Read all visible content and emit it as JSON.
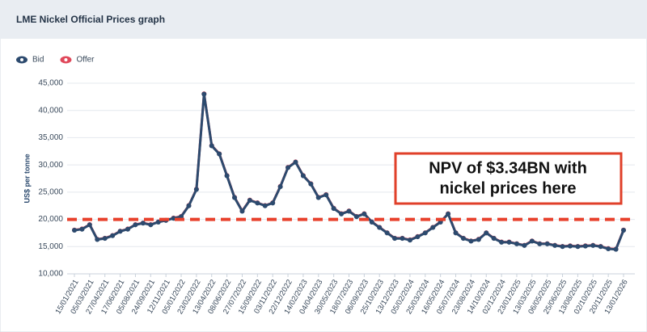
{
  "chart_data": {
    "type": "line",
    "title": "LME Nickel Official Prices graph",
    "y_label": "US$ per tonne",
    "categories": [
      "15/01/2021",
      null,
      "05/03/2021",
      null,
      "27/04/2021",
      null,
      "17/06/2021",
      null,
      "05/08/2021",
      null,
      "24/09/2021",
      null,
      "12/11/2021",
      null,
      "05/01/2022",
      null,
      "23/02/2022",
      null,
      "13/04/2022",
      null,
      "08/06/2022",
      null,
      "27/07/2022",
      null,
      "15/09/2022",
      null,
      "03/11/2022",
      null,
      "22/12/2022",
      null,
      "14/02/2023",
      null,
      "04/04/2023",
      null,
      "30/05/2023",
      null,
      "18/07/2023",
      null,
      "06/09/2023",
      null,
      "25/10/2023",
      null,
      "13/12/2023",
      null,
      "05/02/2024",
      null,
      "25/03/2024",
      null,
      "16/05/2024",
      null,
      "05/07/2024",
      null,
      "23/08/2024",
      null,
      "14/10/2024",
      null,
      "02/12/2024",
      null,
      "23/01/2025",
      null,
      "13/03/2025",
      null,
      "06/05/2025",
      null,
      "25/06/2025",
      null,
      "13/08/2025",
      null,
      "02/10/2025",
      null,
      "20/11/2025",
      null,
      "13/01/2026"
    ],
    "series": [
      {
        "name": "Bid",
        "color": "#2c4a6e",
        "values": [
          18000,
          18200,
          19000,
          16300,
          16500,
          17000,
          17800,
          18200,
          19000,
          19300,
          19000,
          19500,
          19800,
          20200,
          20500,
          22500,
          25500,
          43000,
          33500,
          32000,
          28000,
          24000,
          21500,
          23500,
          23000,
          22500,
          23000,
          26000,
          29500,
          30500,
          28000,
          26500,
          24000,
          24500,
          22000,
          21000,
          21500,
          20500,
          21000,
          19500,
          18500,
          17500,
          16500,
          16500,
          16200,
          16800,
          17500,
          18500,
          19500,
          21000,
          17500,
          16500,
          16000,
          16300,
          17500,
          16500,
          15800,
          15800,
          15500,
          15200,
          16000,
          15500,
          15500,
          15200,
          15000,
          15100,
          15000,
          15100,
          15200,
          15000,
          14600,
          14500,
          18000
        ]
      },
      {
        "name": "Offer",
        "color": "#e0485a",
        "values": [
          18050,
          18250,
          19050,
          16350,
          16550,
          17050,
          17850,
          18250,
          19050,
          19350,
          19050,
          19550,
          19850,
          20250,
          20550,
          22550,
          25550,
          43050,
          33550,
          32050,
          28050,
          24050,
          21550,
          23550,
          23050,
          22550,
          23050,
          26050,
          29550,
          30550,
          28050,
          26550,
          24050,
          24550,
          22050,
          21050,
          21550,
          20550,
          21050,
          19550,
          18550,
          17550,
          16550,
          16550,
          16250,
          16850,
          17550,
          18550,
          19550,
          21050,
          17550,
          16550,
          16050,
          16350,
          17550,
          16550,
          15850,
          15850,
          15550,
          15250,
          16050,
          15550,
          15550,
          15250,
          15050,
          15150,
          15050,
          15150,
          15250,
          15050,
          14650,
          14550,
          18050
        ]
      }
    ],
    "ylim": [
      10000,
      45000
    ],
    "yticks": [
      {
        "value": 10000,
        "label": "10,000"
      },
      {
        "value": 15000,
        "label": "15,000"
      },
      {
        "value": 20000,
        "label": "20,000"
      },
      {
        "value": 25000,
        "label": "25,000"
      },
      {
        "value": 30000,
        "label": "30,000"
      },
      {
        "value": 35000,
        "label": "35,000"
      },
      {
        "value": 40000,
        "label": "40,000"
      },
      {
        "value": 45000,
        "label": "45,000"
      }
    ],
    "grid": true,
    "legend": "top-left",
    "reference_line": {
      "value": 20000,
      "color": "#e8412c"
    },
    "annotation": {
      "lines": [
        "NPV of $3.34BN with",
        "nickel prices here"
      ],
      "color": "#e0402a"
    }
  }
}
